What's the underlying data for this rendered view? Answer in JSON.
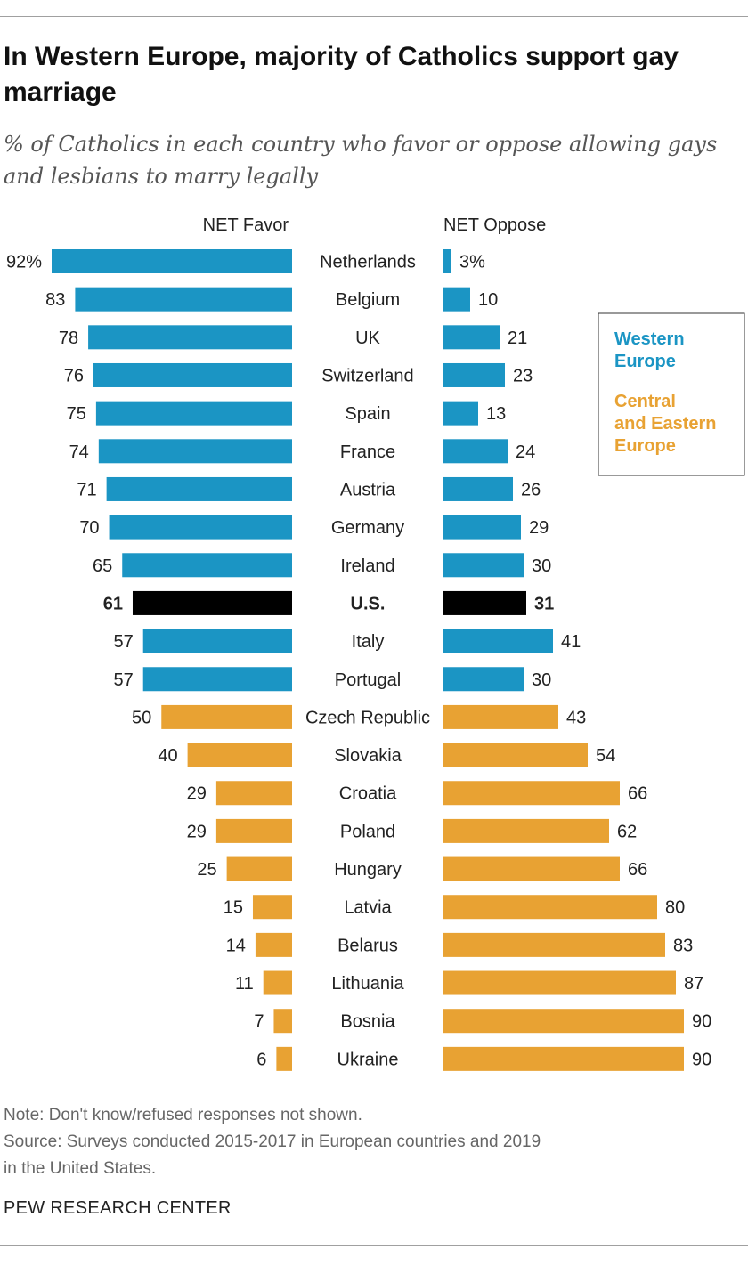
{
  "title": "In Western Europe, majority of Catholics support gay marriage",
  "subtitle": "% of Catholics in each country who favor or oppose allowing gays and lesbians to marry legally",
  "note": "Note: Don't know/refused responses not shown.",
  "source_line1": "Source: Surveys conducted 2015-2017 in European countries and 2019",
  "source_line2": "in the United States.",
  "branding": "PEW RESEARCH CENTER",
  "colors": {
    "western": "#1b95c4",
    "central_eastern": "#e8a233",
    "us": "#000000"
  },
  "chart_data": {
    "type": "bar",
    "orientation": "horizontal",
    "layout": "diverging-panels",
    "favor_header": "NET Favor",
    "oppose_header": "NET Oppose",
    "legend": [
      {
        "label": "Western Europe",
        "group": "western"
      },
      {
        "label": "Central and Eastern Europe",
        "group": "central_eastern"
      }
    ],
    "legend_placement": "right",
    "categories": [
      "Netherlands",
      "Belgium",
      "UK",
      "Switzerland",
      "Spain",
      "France",
      "Austria",
      "Germany",
      "Ireland",
      "U.S.",
      "Italy",
      "Portugal",
      "Czech Republic",
      "Slovakia",
      "Croatia",
      "Poland",
      "Hungary",
      "Latvia",
      "Belarus",
      "Lithuania",
      "Bosnia",
      "Ukraine"
    ],
    "groups": [
      "western",
      "western",
      "western",
      "western",
      "western",
      "western",
      "western",
      "western",
      "western",
      "us",
      "western",
      "western",
      "central_eastern",
      "central_eastern",
      "central_eastern",
      "central_eastern",
      "central_eastern",
      "central_eastern",
      "central_eastern",
      "central_eastern",
      "central_eastern",
      "central_eastern"
    ],
    "series": [
      {
        "name": "NET Favor",
        "values": [
          92,
          83,
          78,
          76,
          75,
          74,
          71,
          70,
          65,
          61,
          57,
          57,
          50,
          40,
          29,
          29,
          25,
          15,
          14,
          11,
          7,
          6
        ]
      },
      {
        "name": "NET Oppose",
        "values": [
          3,
          10,
          21,
          23,
          13,
          24,
          26,
          29,
          30,
          31,
          41,
          30,
          43,
          54,
          66,
          62,
          66,
          80,
          83,
          87,
          90,
          90
        ]
      }
    ],
    "value_suffix_first_row": "%",
    "xlim": [
      0,
      100
    ],
    "grid": false
  }
}
